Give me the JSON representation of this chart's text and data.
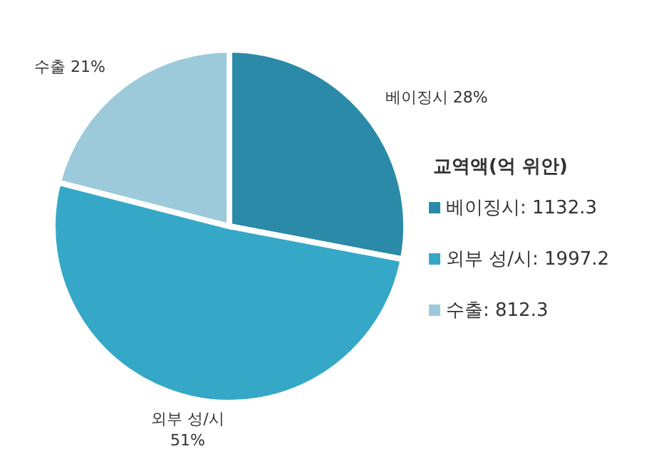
{
  "chart_data": {
    "type": "pie",
    "legend_title": "교역액(억 위안)",
    "legend": "right",
    "categories": [
      "베이징시",
      "외부 성/시",
      "수출"
    ],
    "values": [
      28,
      51,
      21
    ],
    "value_labels": [
      "28%",
      "51%",
      "21%"
    ],
    "annotations": [
      ": 1132.3",
      ": 1997.2",
      ": 812.3"
    ],
    "colors": [
      "#2a8aa8",
      "#35a8c8",
      "#9ccadb"
    ]
  }
}
